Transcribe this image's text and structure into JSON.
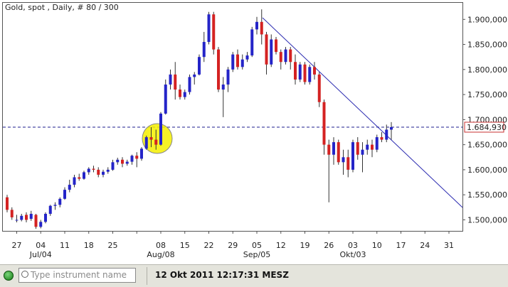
{
  "header": {
    "title": "Gold, spot , Daily, # 80 / 300"
  },
  "chart_data": {
    "type": "candlestick",
    "xticks": [
      "27",
      "04",
      "11",
      "18",
      "25",
      null,
      "08",
      "15",
      "22",
      "29",
      "05",
      "12",
      "19",
      "26",
      "03",
      "10",
      "17",
      "24",
      "31"
    ],
    "month_labels": [
      "Jul/04",
      "Aug/08",
      "Sep/05",
      "Okt/03"
    ],
    "open": [
      1545,
      1520,
      1500,
      1500,
      1510,
      1502,
      1510,
      1486,
      1496,
      1512,
      1528,
      1530,
      1542,
      1560,
      1570,
      1585,
      1582,
      1595,
      1602,
      1600,
      1590,
      1596,
      1600,
      1615,
      1620,
      1612,
      1616,
      1628,
      1622,
      1642,
      1665,
      1660,
      1650,
      1712,
      1770,
      1790,
      1760,
      1745,
      1755,
      1785,
      1790,
      1825,
      1855,
      1910,
      1840,
      1760,
      1770,
      1800,
      1830,
      1805,
      1820,
      1828,
      1880,
      1895,
      1870,
      1810,
      1860,
      1835,
      1815,
      1840,
      1815,
      1780,
      1810,
      1775,
      1805,
      1790,
      1735,
      1650,
      1630,
      1655,
      1615,
      1625,
      1600,
      1655,
      1630,
      1640,
      1650,
      1640,
      1665,
      1660,
      1680
    ],
    "high": [
      1550,
      1525,
      1510,
      1512,
      1515,
      1518,
      1512,
      1500,
      1515,
      1530,
      1535,
      1545,
      1565,
      1580,
      1590,
      1592,
      1598,
      1605,
      1608,
      1605,
      1600,
      1605,
      1620,
      1624,
      1625,
      1620,
      1630,
      1635,
      1645,
      1668,
      1685,
      1680,
      1715,
      1780,
      1800,
      1815,
      1770,
      1760,
      1790,
      1795,
      1830,
      1875,
      1915,
      1915,
      1845,
      1785,
      1805,
      1835,
      1840,
      1830,
      1835,
      1885,
      1905,
      1920,
      1875,
      1870,
      1865,
      1840,
      1845,
      1845,
      1830,
      1815,
      1815,
      1810,
      1815,
      1795,
      1740,
      1660,
      1665,
      1660,
      1640,
      1640,
      1660,
      1665,
      1655,
      1660,
      1660,
      1670,
      1675,
      1690,
      1695
    ],
    "low": [
      1515,
      1500,
      1495,
      1497,
      1495,
      1498,
      1482,
      1483,
      1493,
      1508,
      1520,
      1525,
      1540,
      1555,
      1565,
      1578,
      1580,
      1590,
      1595,
      1585,
      1585,
      1592,
      1598,
      1610,
      1605,
      1608,
      1610,
      1605,
      1618,
      1640,
      1645,
      1640,
      1648,
      1710,
      1760,
      1740,
      1740,
      1740,
      1750,
      1770,
      1788,
      1815,
      1850,
      1830,
      1755,
      1705,
      1755,
      1795,
      1800,
      1800,
      1815,
      1825,
      1870,
      1850,
      1790,
      1805,
      1830,
      1800,
      1810,
      1800,
      1770,
      1775,
      1770,
      1770,
      1780,
      1725,
      1630,
      1535,
      1610,
      1610,
      1590,
      1585,
      1595,
      1620,
      1595,
      1630,
      1625,
      1635,
      1655,
      1655,
      1660
    ],
    "close": [
      1520,
      1505,
      1500,
      1508,
      1500,
      1512,
      1486,
      1496,
      1512,
      1528,
      1530,
      1542,
      1560,
      1570,
      1585,
      1582,
      1595,
      1602,
      1600,
      1590,
      1596,
      1600,
      1615,
      1620,
      1612,
      1616,
      1628,
      1622,
      1642,
      1665,
      1660,
      1650,
      1712,
      1770,
      1790,
      1760,
      1745,
      1755,
      1785,
      1790,
      1825,
      1855,
      1910,
      1840,
      1760,
      1770,
      1800,
      1830,
      1805,
      1820,
      1828,
      1880,
      1895,
      1870,
      1810,
      1860,
      1835,
      1815,
      1840,
      1815,
      1780,
      1810,
      1775,
      1805,
      1790,
      1735,
      1650,
      1630,
      1655,
      1615,
      1625,
      1600,
      1655,
      1630,
      1640,
      1650,
      1640,
      1665,
      1660,
      1680,
      1685
    ],
    "up_color": "#2424c8",
    "down_color": "#d42222",
    "ylim": [
      1478,
      1933
    ],
    "yticks": [
      {
        "value": 1500,
        "label": "1.500,000"
      },
      {
        "value": 1550,
        "label": "1.550,000"
      },
      {
        "value": 1600,
        "label": "1.600,000"
      },
      {
        "value": 1650,
        "label": "1.650,000"
      },
      {
        "value": 1700,
        "label": "1.700,000"
      },
      {
        "value": 1750,
        "label": "1.750,000"
      },
      {
        "value": 1800,
        "label": "1.800,000"
      },
      {
        "value": 1850,
        "label": "1.850,000"
      },
      {
        "value": 1900,
        "label": "1.900,000"
      }
    ],
    "last_price": {
      "value": 1684.93,
      "label": "1.684,930"
    }
  },
  "footer": {
    "search_placeholder": "Type instrument name",
    "timestamp": "12 Okt 2011 12:17:31 MESZ"
  }
}
